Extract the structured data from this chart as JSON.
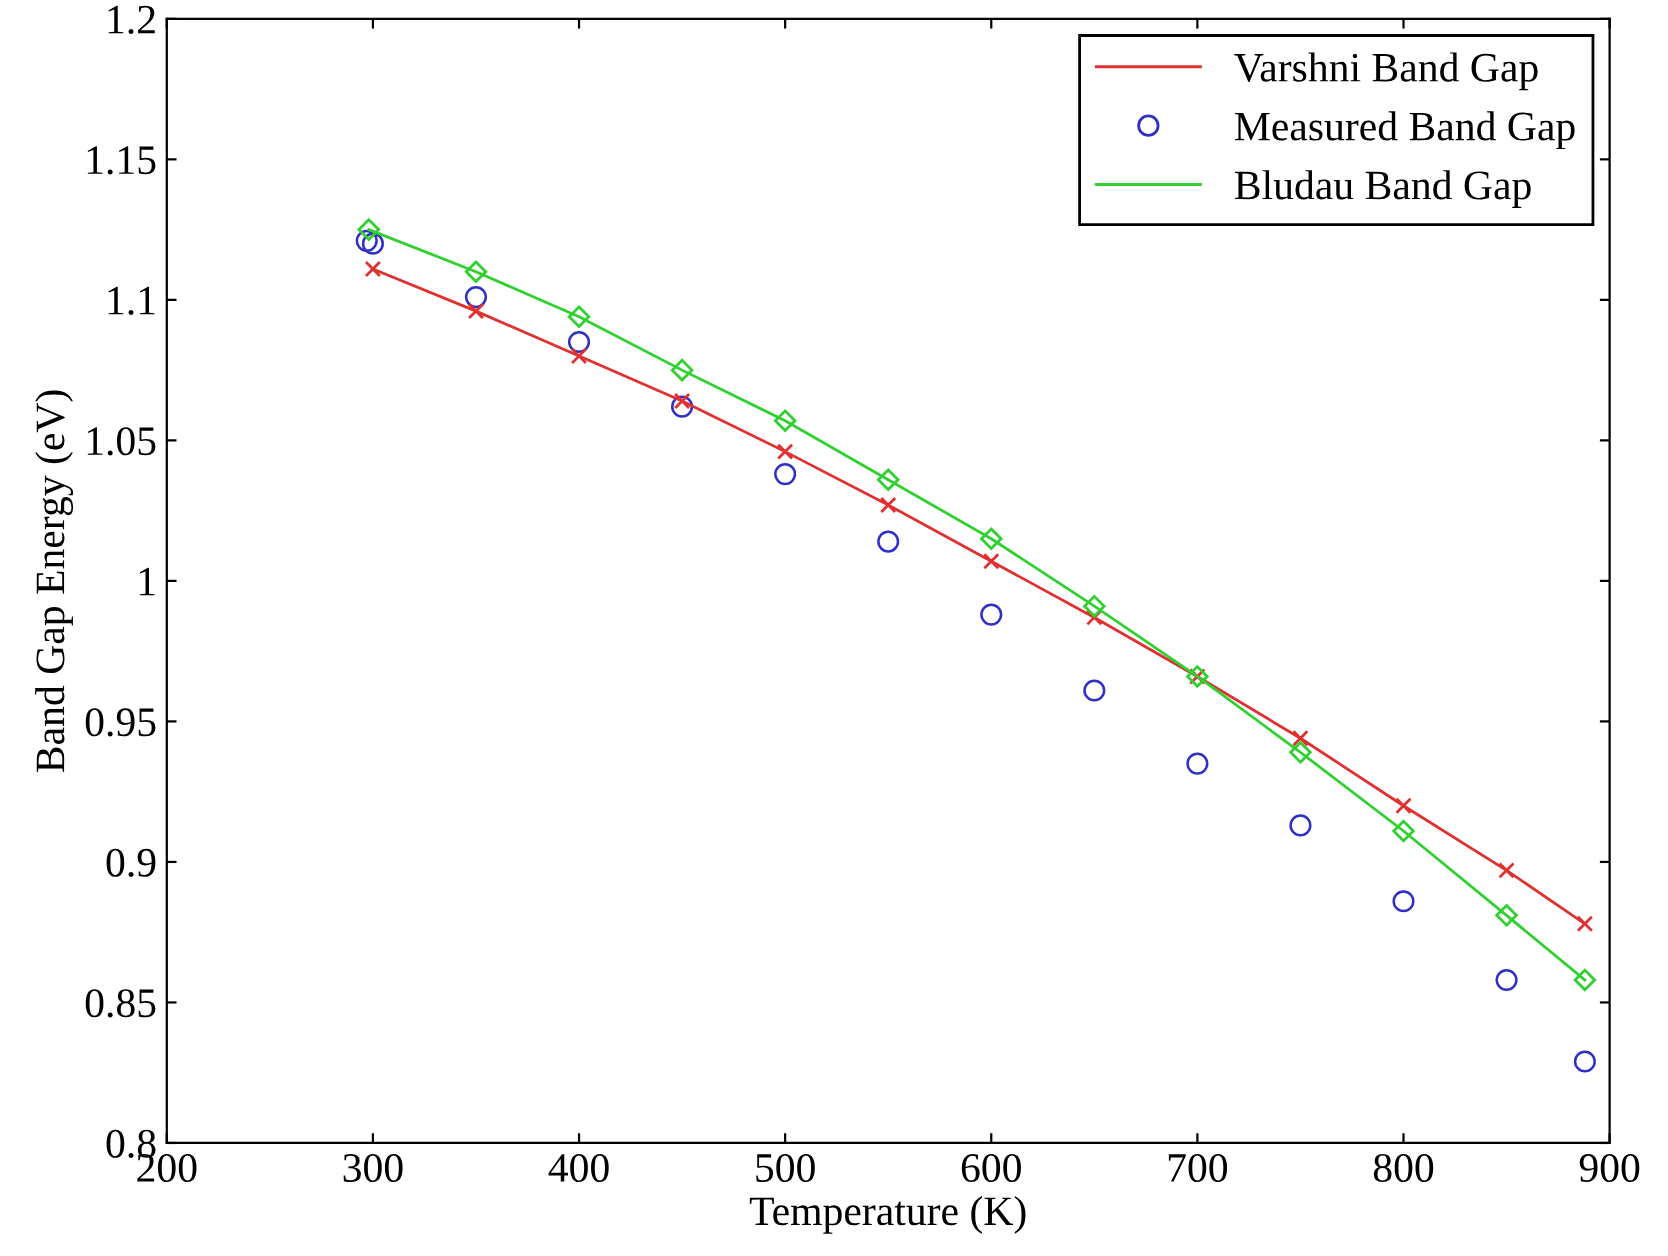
{
  "chart_data": {
    "type": "line",
    "xlabel": "Temperature (K)",
    "ylabel": "Band Gap Energy (eV)",
    "xlim": [
      200,
      900
    ],
    "xticks": [
      200,
      300,
      400,
      500,
      600,
      700,
      800,
      900
    ],
    "ylim": [
      0.8,
      1.2
    ],
    "yticks": [
      0.8,
      0.85,
      0.9,
      0.95,
      1,
      1.05,
      1.1,
      1.15,
      1.2
    ],
    "grid": false,
    "legend": "top right",
    "series": [
      {
        "name": "Varshni Band Gap",
        "color": "#e03030",
        "marker": "cross",
        "line_style": "solid",
        "x": [
          300,
          350,
          400,
          450,
          500,
          550,
          600,
          650,
          700,
          750,
          800,
          850,
          888
        ],
        "values": [
          1.111,
          1.096,
          1.08,
          1.064,
          1.046,
          1.027,
          1.007,
          0.987,
          0.966,
          0.944,
          0.92,
          0.897,
          0.878
        ]
      },
      {
        "name": "Measured Band Gap",
        "type": "scatter",
        "color": "#3030c8",
        "marker": "circle",
        "x": [
          297,
          300,
          350,
          400,
          450,
          500,
          550,
          600,
          650,
          700,
          750,
          800,
          850,
          888
        ],
        "values": [
          1.121,
          1.12,
          1.101,
          1.085,
          1.062,
          1.038,
          1.014,
          0.988,
          0.961,
          0.935,
          0.913,
          0.886,
          0.858,
          0.829
        ]
      },
      {
        "name": "Bludau Band Gap",
        "color": "#30d030",
        "marker": "diamond",
        "line_style": "solid",
        "x": [
          298,
          350,
          400,
          450,
          500,
          550,
          600,
          650,
          700,
          750,
          800,
          850,
          888
        ],
        "values": [
          1.125,
          1.11,
          1.094,
          1.075,
          1.057,
          1.036,
          1.015,
          0.991,
          0.966,
          0.939,
          0.911,
          0.881,
          0.858
        ]
      }
    ]
  }
}
